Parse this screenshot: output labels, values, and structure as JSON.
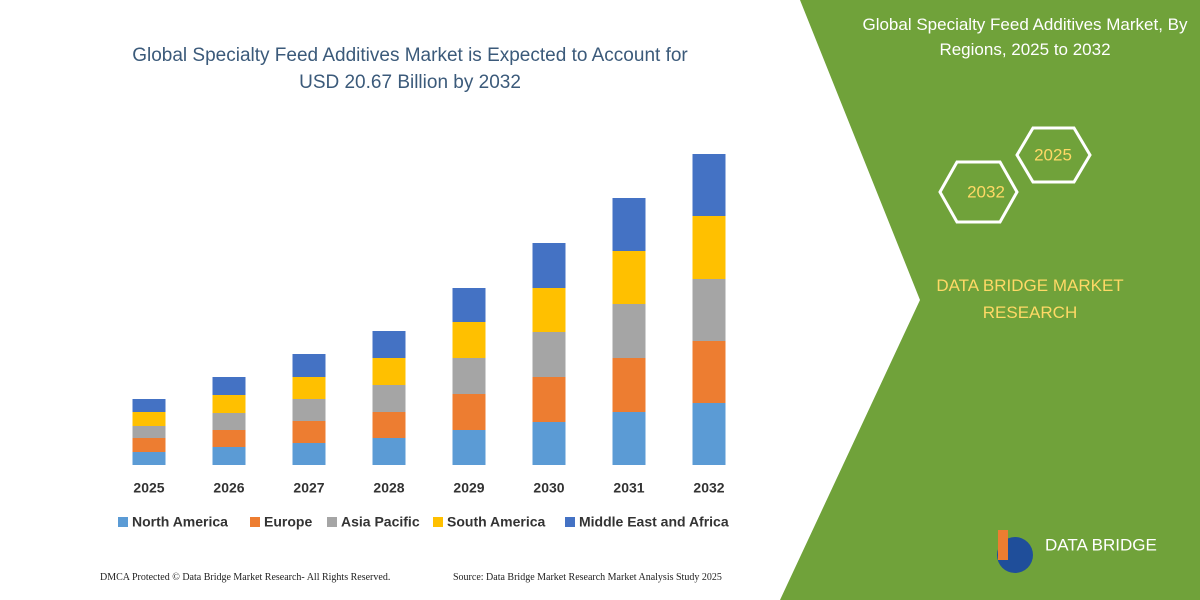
{
  "chart_data": {
    "type": "stacked-bar",
    "title": "Global Specialty Feed Additives Market is Expected to Account for USD 20.67 Billion by 2032",
    "categories": [
      "2025",
      "2026",
      "2027",
      "2028",
      "2029",
      "2030",
      "2031",
      "2032"
    ],
    "series": [
      {
        "name": "North America",
        "color": "#5b9bd5",
        "values": [
          13,
          18,
          22,
          27,
          35,
          43,
          53,
          62
        ]
      },
      {
        "name": "Europe",
        "color": "#ed7d31",
        "values": [
          14,
          17,
          22,
          26,
          36,
          45,
          54,
          62
        ]
      },
      {
        "name": "Asia Pacific",
        "color": "#a5a5a5",
        "values": [
          12,
          17,
          22,
          27,
          36,
          45,
          54,
          62
        ]
      },
      {
        "name": "South America",
        "color": "#ffc000",
        "values": [
          14,
          18,
          22,
          27,
          36,
          44,
          53,
          63
        ]
      },
      {
        "name": "Middle East and Africa",
        "color": "#4472c4",
        "values": [
          13,
          18,
          23,
          27,
          34,
          45,
          53,
          62
        ]
      }
    ],
    "ylim": [
      0,
      311
    ]
  },
  "side_panel": {
    "title": "Global Specialty Feed Additives Market, By Regions, 2025 to 2032",
    "hexagon_labels": [
      "2025",
      "2032"
    ],
    "brand": "DATA BRIDGE MARKET RESEARCH",
    "logo_text": "DATA BRIDGE"
  },
  "footer": {
    "left": "DMCA Protected © Data Bridge Market Research- All Rights Reserved.",
    "right": "Source: Data Bridge Market Research Market Analysis Study 2025"
  }
}
